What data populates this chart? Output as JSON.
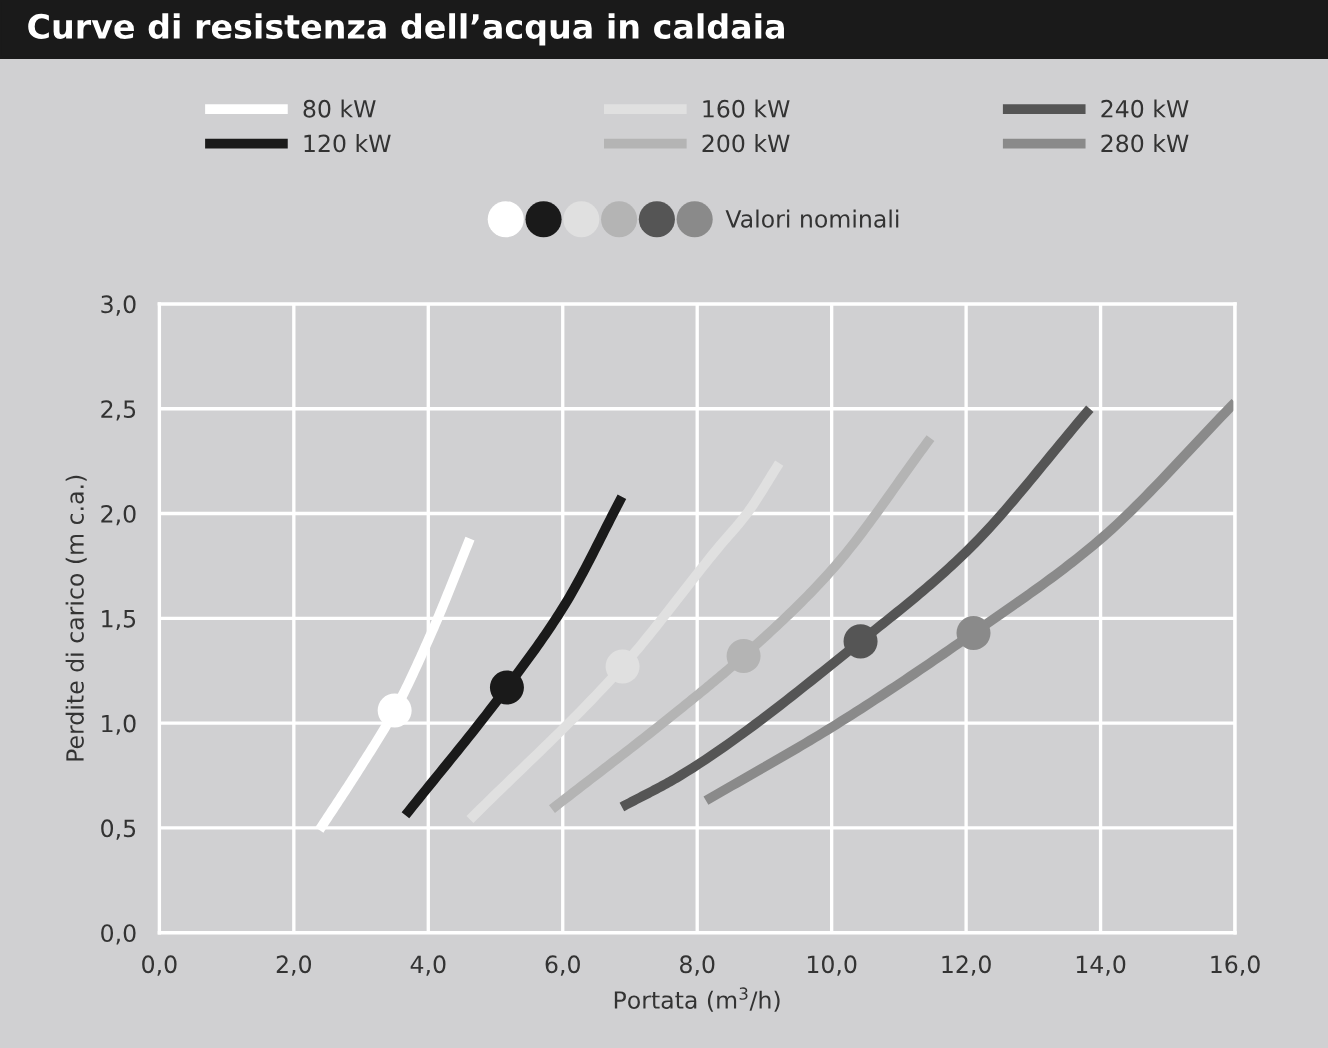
{
  "chart_data": {
    "type": "line",
    "title": "Curve di resistenza dell’acqua in caldaia",
    "xlabel": "Portata (m$^{3}$/h)",
    "ylabel": "Perdite di carico (m c.a.)",
    "xlim": [
      0,
      16
    ],
    "ylim": [
      0,
      3
    ],
    "xticks": [
      {
        "value": 0,
        "label": "0,0"
      },
      {
        "value": 2,
        "label": "2,0"
      },
      {
        "value": 4,
        "label": "4,0"
      },
      {
        "value": 6,
        "label": "6,0"
      },
      {
        "value": 8,
        "label": "8,0"
      },
      {
        "value": 10,
        "label": "10,0"
      },
      {
        "value": 12,
        "label": "12,0"
      },
      {
        "value": 14,
        "label": "14,0"
      },
      {
        "value": 16,
        "label": "16,0"
      }
    ],
    "yticks": [
      {
        "value": 0,
        "label": "0,0"
      },
      {
        "value": 0.5,
        "label": "0,5"
      },
      {
        "value": 1,
        "label": "1,0"
      },
      {
        "value": 1.5,
        "label": "1,5"
      },
      {
        "value": 2,
        "label": "2,0"
      },
      {
        "value": 2.5,
        "label": "2,5"
      },
      {
        "value": 3,
        "label": "3,0"
      }
    ],
    "grid": true,
    "legend": "top",
    "marker": "none",
    "line_style": "solid",
    "series": [
      {
        "name": "80 kW",
        "color": "#ffffff",
        "x": [
          2.38,
          2.97,
          3.5,
          4.06,
          4.62
        ],
        "values": [
          0.49,
          0.78,
          1.06,
          1.44,
          1.88
        ]
      },
      {
        "name": "120 kW",
        "color": "#1a1a1a",
        "x": [
          3.66,
          5.17,
          6.04,
          6.88
        ],
        "values": [
          0.56,
          1.17,
          1.57,
          2.08
        ]
      },
      {
        "name": "160 kW",
        "color": "#e0e0e0",
        "x": [
          4.62,
          6.89,
          8.32,
          8.74,
          9.22
        ],
        "values": [
          0.54,
          1.27,
          1.84,
          2.0,
          2.24
        ]
      },
      {
        "name": "200 kW",
        "color": "#b4b4b4",
        "x": [
          5.84,
          7.72,
          8.69,
          10.0,
          11.47
        ],
        "values": [
          0.59,
          1.06,
          1.32,
          1.73,
          2.36
        ]
      },
      {
        "name": "240 kW",
        "color": "#555555",
        "x": [
          6.88,
          7.75,
          10.43,
          12.01,
          13.84
        ],
        "values": [
          0.6,
          0.75,
          1.39,
          1.82,
          2.5
        ]
      },
      {
        "name": "280 kW",
        "color": "#8a8a8a",
        "x": [
          8.13,
          10.0,
          12.11,
          13.97,
          16.0
        ],
        "values": [
          0.63,
          0.98,
          1.43,
          1.87,
          2.53
        ]
      },
      {
        "name": "Valori nominali",
        "type": "scatter",
        "marker": "circle",
        "colors": [
          "#ffffff",
          "#1a1a1a",
          "#e0e0e0",
          "#b4b4b4",
          "#555555",
          "#8a8a8a"
        ],
        "x": [
          3.5,
          5.17,
          6.89,
          8.69,
          10.43,
          12.11
        ],
        "values": [
          1.06,
          1.17,
          1.27,
          1.32,
          1.39,
          1.43
        ]
      }
    ]
  }
}
